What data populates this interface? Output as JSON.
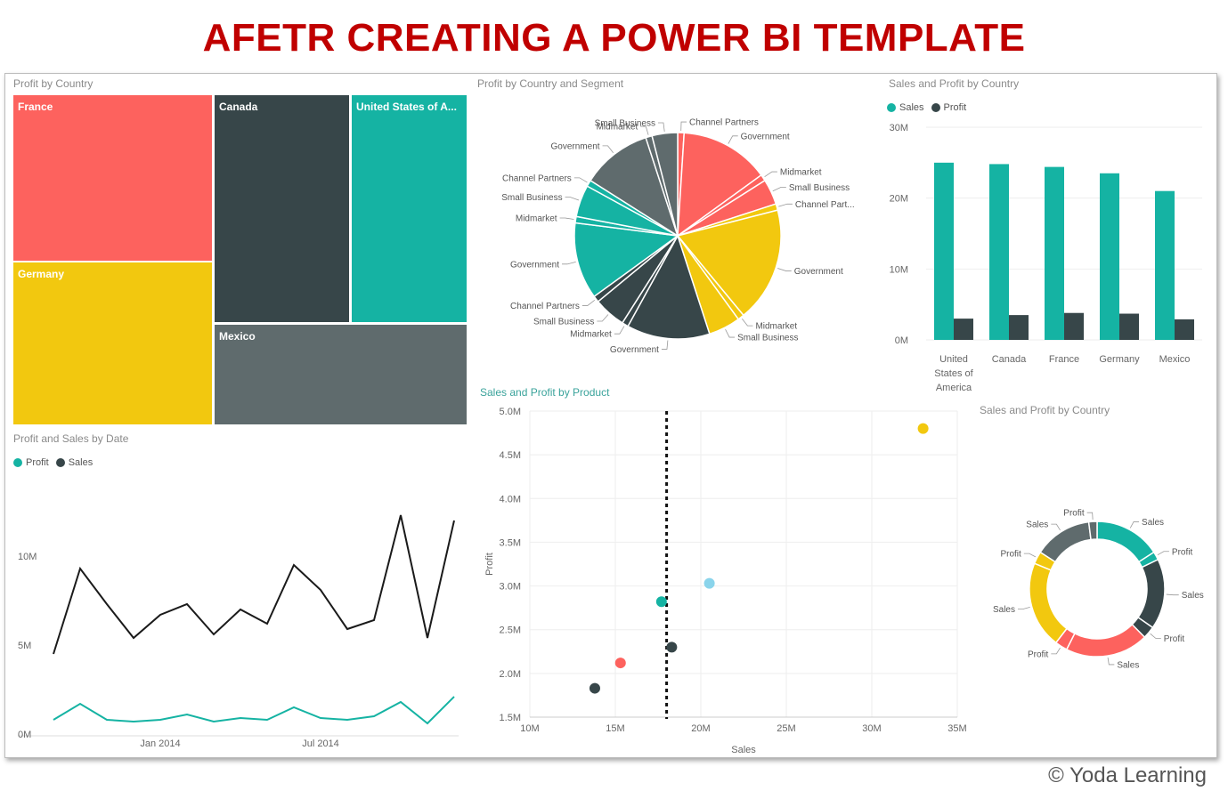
{
  "page_title": "AFETR CREATING A POWER BI TEMPLATE",
  "copyright": "© Yoda Learning",
  "colors": {
    "teal": "#15b3a3",
    "dark": "#374649",
    "red": "#fd625e",
    "yellow": "#f2c80f",
    "gray": "#5f6b6d",
    "lightblue": "#8ad4eb"
  },
  "visuals": {
    "treemap_title": "Profit by Country",
    "pie_title": "Profit by Country and Segment",
    "bar_title": "Sales and Profit by Country",
    "line_title": "Profit and  Sales by Date",
    "scatter_title": "Sales and Profit by Product",
    "donut_title": "Sales and Profit by Country"
  },
  "chart_data": [
    {
      "type": "treemap",
      "title": "Profit by Country",
      "items": [
        {
          "label": "France",
          "color": "#fd625e",
          "value": 3.8
        },
        {
          "label": "Germany",
          "color": "#f2c80f",
          "value": 3.7
        },
        {
          "label": "Canada",
          "color": "#374649",
          "value": 3.5
        },
        {
          "label": "United States of A...",
          "color": "#15b3a3",
          "value": 3.0
        },
        {
          "label": "Mexico",
          "color": "#5f6b6d",
          "value": 2.9
        }
      ]
    },
    {
      "type": "pie",
      "title": "Profit by Country and Segment",
      "slices": [
        {
          "label": "Channel Partners",
          "value": 1,
          "color": "#fd625e"
        },
        {
          "label": "Government",
          "value": 14,
          "color": "#fd625e"
        },
        {
          "label": "Midmarket",
          "value": 1,
          "color": "#fd625e"
        },
        {
          "label": "Small Business",
          "value": 4,
          "color": "#fd625e"
        },
        {
          "label": "Channel Part...",
          "value": 1,
          "color": "#f2c80f"
        },
        {
          "label": "Government",
          "value": 18,
          "color": "#f2c80f"
        },
        {
          "label": "Midmarket",
          "value": 1,
          "color": "#f2c80f"
        },
        {
          "label": "Small Business",
          "value": 5,
          "color": "#f2c80f"
        },
        {
          "label": "Government",
          "value": 13,
          "color": "#374649"
        },
        {
          "label": "Midmarket",
          "value": 1,
          "color": "#374649"
        },
        {
          "label": "Small Business",
          "value": 5,
          "color": "#374649"
        },
        {
          "label": "Channel Partners",
          "value": 1,
          "color": "#374649"
        },
        {
          "label": "Government",
          "value": 12,
          "color": "#15b3a3"
        },
        {
          "label": "Midmarket",
          "value": 1,
          "color": "#15b3a3"
        },
        {
          "label": "Small Business",
          "value": 5,
          "color": "#15b3a3"
        },
        {
          "label": "Channel Partners",
          "value": 1,
          "color": "#15b3a3"
        },
        {
          "label": "Government",
          "value": 11,
          "color": "#5f6b6d"
        },
        {
          "label": "Midmarket",
          "value": 1,
          "color": "#5f6b6d"
        },
        {
          "label": "Small Business",
          "value": 4,
          "color": "#5f6b6d"
        }
      ]
    },
    {
      "type": "bar",
      "title": "Sales and Profit by Country",
      "categories": [
        "United States of America",
        "Canada",
        "France",
        "Germany",
        "Mexico"
      ],
      "category_lines": [
        [
          "United",
          "States of",
          "America"
        ],
        [
          "Canada"
        ],
        [
          "France"
        ],
        [
          "Germany"
        ],
        [
          "Mexico"
        ]
      ],
      "series": [
        {
          "name": "Sales",
          "color": "#15b3a3",
          "values": [
            25.0,
            24.8,
            24.4,
            23.5,
            21.0
          ]
        },
        {
          "name": "Profit",
          "color": "#374649",
          "values": [
            3.0,
            3.5,
            3.8,
            3.7,
            2.9
          ]
        }
      ],
      "yticks": [
        "0M",
        "10M",
        "20M",
        "30M"
      ],
      "ylim": [
        0,
        30
      ]
    },
    {
      "type": "line",
      "title": "Profit and  Sales by Date",
      "series": [
        {
          "name": "Profit",
          "color": "#15b3a3",
          "values": [
            0.8,
            1.7,
            0.8,
            0.7,
            0.8,
            1.1,
            0.7,
            0.9,
            0.8,
            1.5,
            0.9,
            0.8,
            1.0,
            1.8,
            0.6,
            2.1
          ]
        },
        {
          "name": "Sales",
          "color": "#374649",
          "values": [
            4.5,
            9.3,
            7.3,
            5.4,
            6.7,
            7.3,
            5.6,
            7.0,
            6.2,
            9.5,
            8.1,
            5.9,
            6.4,
            12.3,
            5.4,
            12.0
          ]
        }
      ],
      "xticks": [
        {
          "label": "Jan 2014",
          "index": 4
        },
        {
          "label": "Jul 2014",
          "index": 10
        }
      ],
      "yticks": [
        "0M",
        "5M",
        "10M"
      ],
      "ylim": [
        0,
        12.5
      ]
    },
    {
      "type": "scatter",
      "title": "Sales and Profit by Product",
      "xlabel": "Sales",
      "ylabel": "Profit",
      "xlim": [
        10,
        35
      ],
      "ylim": [
        1.5,
        5.0
      ],
      "xticks": [
        "10M",
        "15M",
        "20M",
        "25M",
        "30M",
        "35M"
      ],
      "yticks": [
        "1.5M",
        "2.0M",
        "2.5M",
        "3.0M",
        "3.5M",
        "4.0M",
        "4.5M",
        "5.0M"
      ],
      "reference_x": 18,
      "points": [
        {
          "x": 33.0,
          "y": 4.8,
          "color": "#f2c80f"
        },
        {
          "x": 20.5,
          "y": 3.03,
          "color": "#8ad4eb"
        },
        {
          "x": 17.7,
          "y": 2.82,
          "color": "#15b3a3"
        },
        {
          "x": 18.3,
          "y": 2.3,
          "color": "#374649"
        },
        {
          "x": 15.3,
          "y": 2.12,
          "color": "#fd625e"
        },
        {
          "x": 13.8,
          "y": 1.83,
          "color": "#374649"
        }
      ]
    },
    {
      "type": "donut",
      "title": "Sales and Profit by Country",
      "slices": [
        {
          "label": "Sales",
          "value": 16,
          "color": "#15b3a3"
        },
        {
          "label": "Profit",
          "value": 2,
          "color": "#15b3a3"
        },
        {
          "label": "Sales",
          "value": 17,
          "color": "#374649"
        },
        {
          "label": "Profit",
          "value": 3,
          "color": "#374649"
        },
        {
          "label": "Sales",
          "value": 20,
          "color": "#fd625e"
        },
        {
          "label": "Profit",
          "value": 3,
          "color": "#fd625e"
        },
        {
          "label": "Sales",
          "value": 21,
          "color": "#f2c80f"
        },
        {
          "label": "Profit",
          "value": 3,
          "color": "#f2c80f"
        },
        {
          "label": "Sales",
          "value": 14,
          "color": "#5f6b6d"
        },
        {
          "label": "Profit",
          "value": 2,
          "color": "#5f6b6d"
        }
      ]
    }
  ]
}
